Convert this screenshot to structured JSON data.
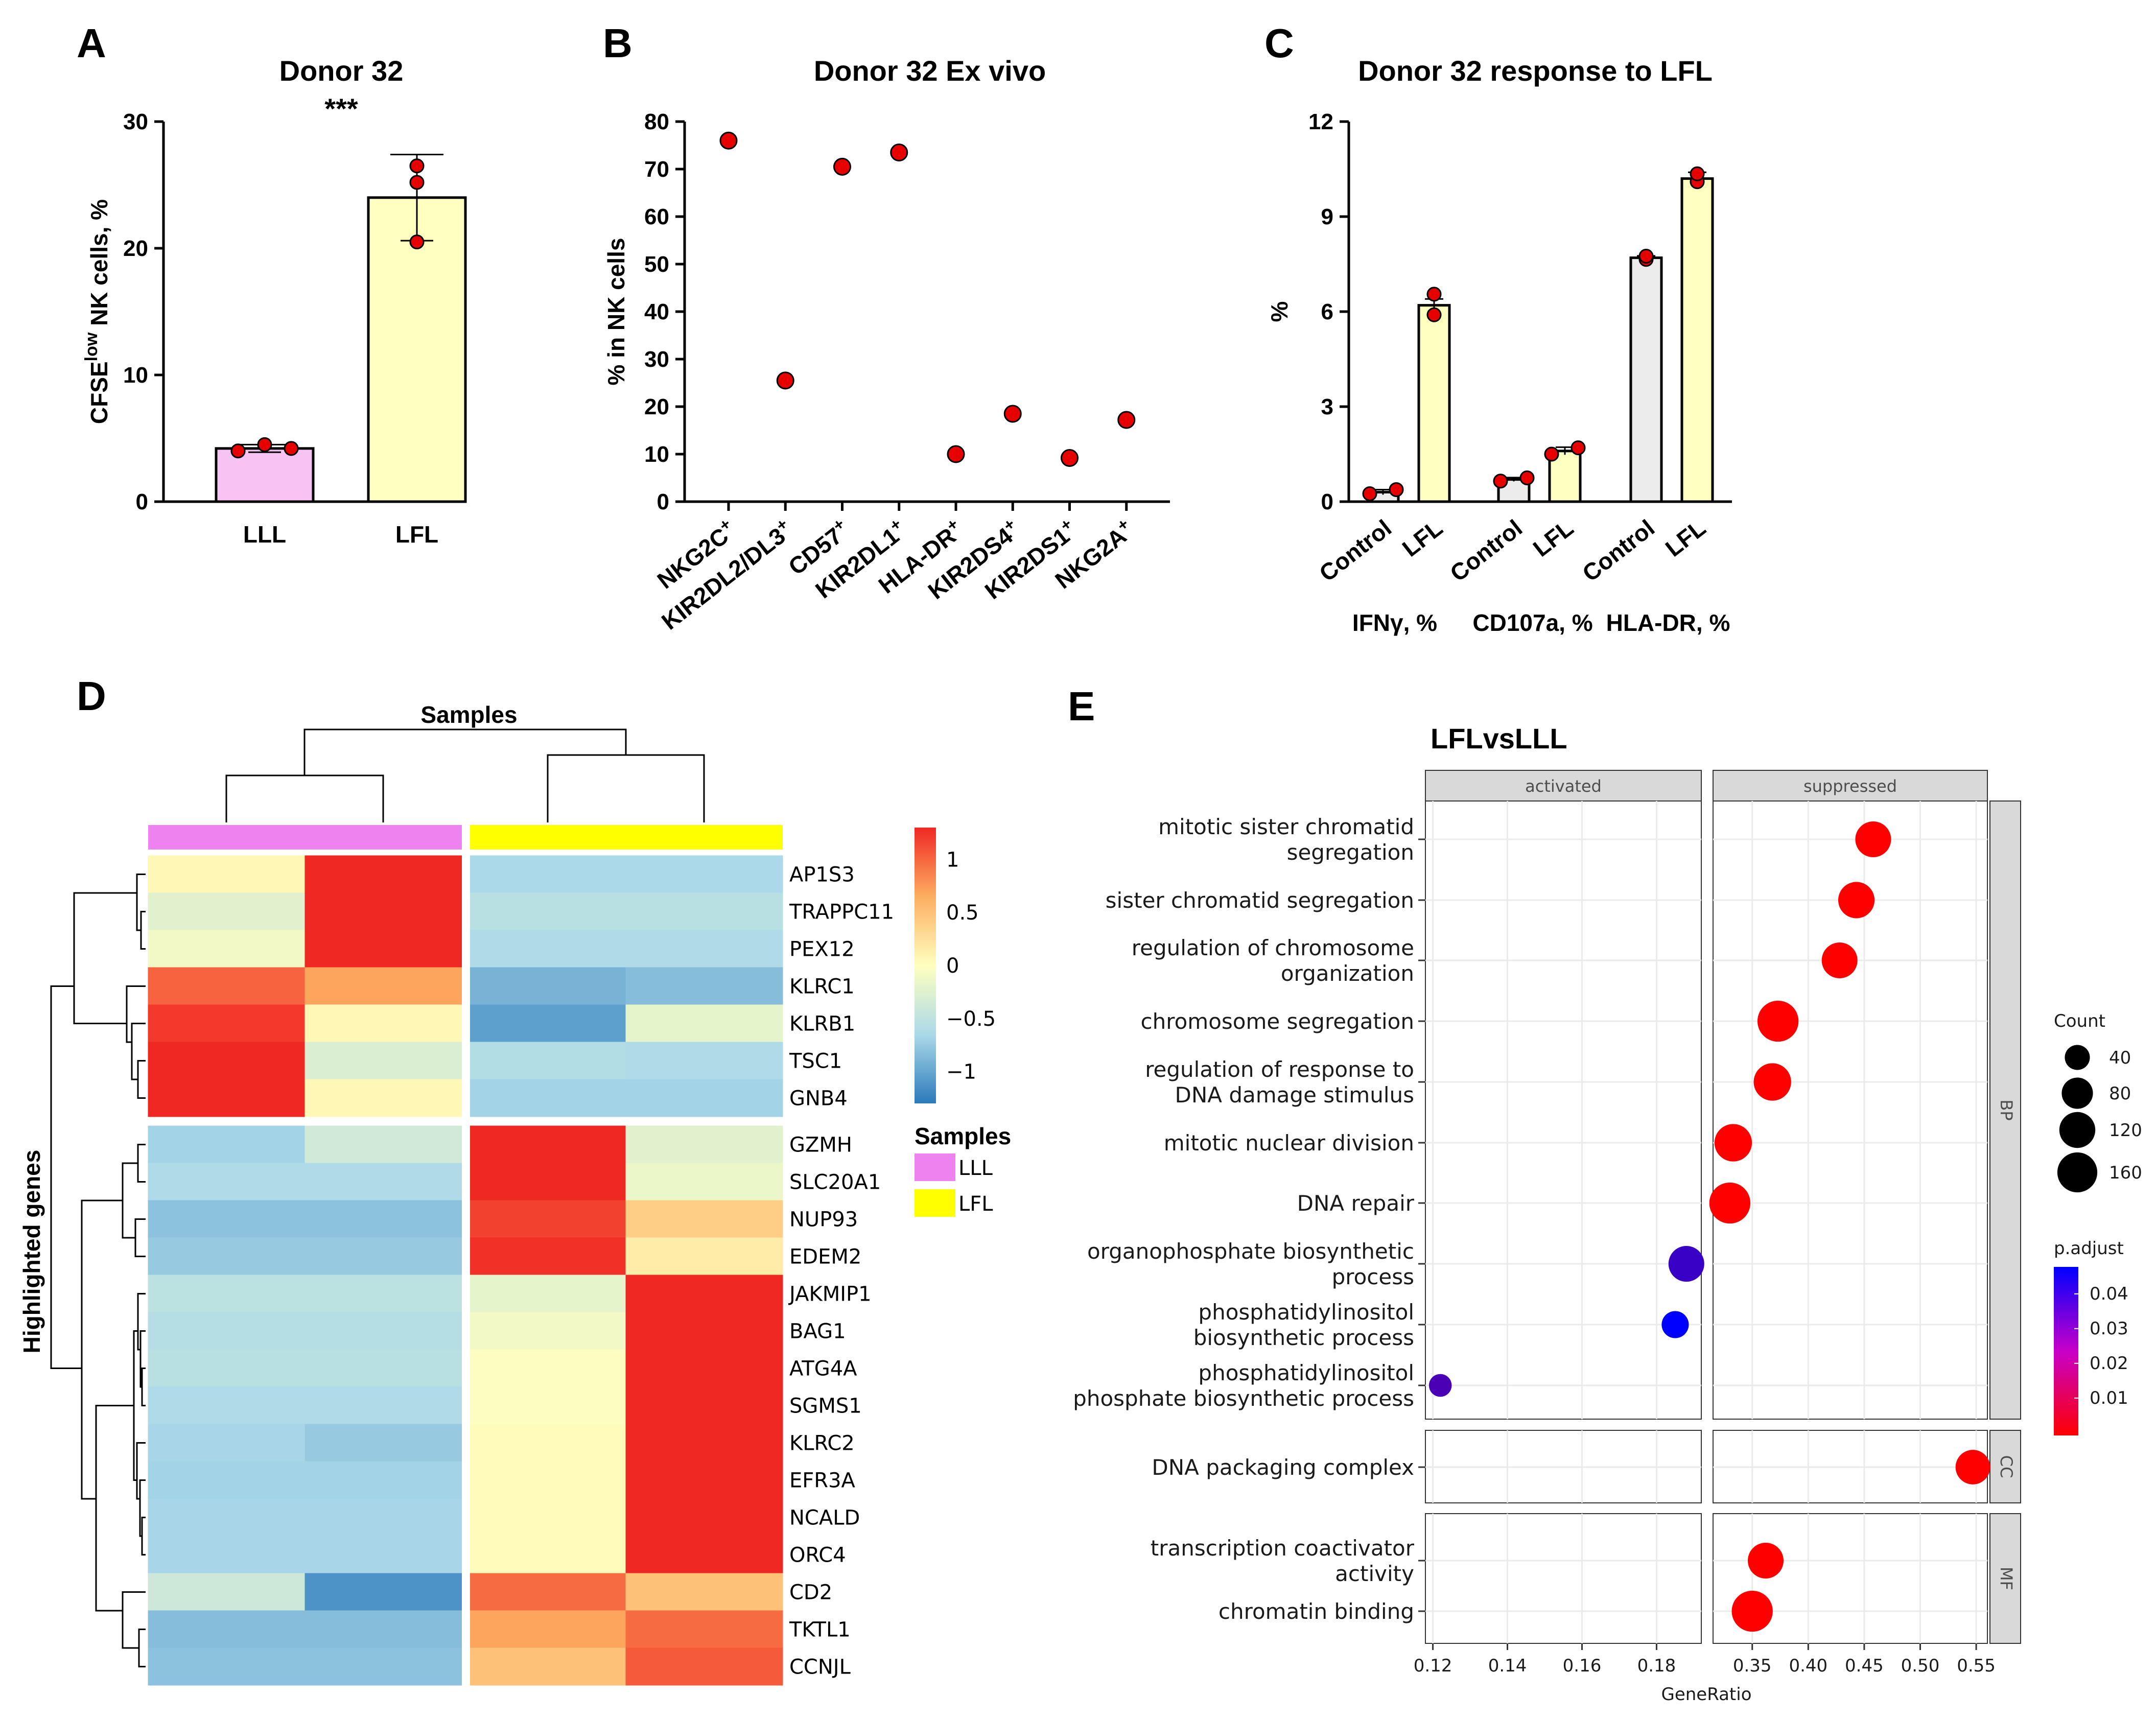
{
  "panel_labels": [
    "A",
    "B",
    "C",
    "D",
    "E"
  ],
  "chart_data": [
    {
      "id": "A",
      "type": "bar",
      "title": "Donor 32",
      "significance": "***",
      "categories": [
        "LLL",
        "LFL"
      ],
      "values": [
        4.2,
        24.0
      ],
      "error": [
        0.3,
        3.4
      ],
      "points": [
        [
          4.0,
          4.5,
          4.2
        ],
        [
          20.5,
          25.2,
          26.5
        ]
      ],
      "bar_colors": [
        "#f7c3f3",
        "#ffffc0"
      ],
      "ylabel_main": "CFSE",
      "ylabel_sup": "low",
      "ylabel_rest": " NK cells, %",
      "ylim": [
        0,
        30
      ],
      "yticks": [
        0,
        10,
        20,
        30
      ]
    },
    {
      "id": "B",
      "type": "scatter",
      "title": "Donor 32 Ex vivo",
      "categories": [
        "NKG2C",
        "KIR2DL2/DL3",
        "CD57",
        "KIR2DL1",
        "HLA-DR",
        "KIR2DS4",
        "KIR2DS1",
        "NKG2A"
      ],
      "category_sup": "+",
      "values": [
        76,
        25.5,
        70.5,
        73.5,
        10,
        18.5,
        9.2,
        17.2
      ],
      "ylabel": "% in NK cells",
      "ylim": [
        0,
        80
      ],
      "yticks": [
        0,
        10,
        20,
        30,
        40,
        50,
        60,
        70,
        80
      ]
    },
    {
      "id": "C",
      "type": "bar",
      "title": "Donor 32 response to LFL",
      "ylabel": "%",
      "ylim": [
        0,
        12
      ],
      "yticks": [
        0,
        3,
        6,
        9,
        12
      ],
      "groups": [
        "IFNγ, %",
        "CD107a, %",
        "HLA-DR, %"
      ],
      "categories": [
        "Control",
        "LFL",
        "Control",
        "LFL",
        "Control",
        "LFL"
      ],
      "values": [
        0.3,
        6.2,
        0.7,
        1.6,
        7.7,
        10.2
      ],
      "error": [
        0.08,
        0.2,
        0.06,
        0.12,
        0.06,
        0.2
      ],
      "points": [
        [
          0.25,
          0.38
        ],
        [
          5.9,
          6.55
        ],
        [
          0.65,
          0.75
        ],
        [
          1.5,
          1.7
        ],
        [
          7.65,
          7.75
        ],
        [
          10.1,
          10.35
        ]
      ],
      "bar_colors": [
        "#ececec",
        "#ffffc0",
        "#ececec",
        "#ffffc0",
        "#ececec",
        "#ffffc0"
      ]
    },
    {
      "id": "D",
      "type": "heatmap",
      "title": "Samples",
      "ylabel": "Highlighted genes",
      "genes": [
        "AP1S3",
        "TRAPPC11",
        "PEX12",
        "KLRC1",
        "KLRB1",
        "TSC1",
        "GNB4",
        "GZMH",
        "SLC20A1",
        "NUP93",
        "EDEM2",
        "JAKMIP1",
        "BAG1",
        "ATG4A",
        "SGMS1",
        "KLRC2",
        "EFR3A",
        "NCALD",
        "ORC4",
        "CD2",
        "TKTL1",
        "CCNJL"
      ],
      "values": [
        [
          0.05,
          1.3,
          -0.5,
          -0.5
        ],
        [
          -0.18,
          1.3,
          -0.42,
          -0.42
        ],
        [
          -0.08,
          1.3,
          -0.48,
          -0.48
        ],
        [
          0.95,
          0.55,
          -0.8,
          -0.72
        ],
        [
          1.2,
          0.05,
          -0.95,
          -0.15
        ],
        [
          1.3,
          -0.22,
          -0.45,
          -0.48
        ],
        [
          1.3,
          0.05,
          -0.55,
          -0.55
        ],
        [
          -0.55,
          -0.28,
          1.3,
          -0.18
        ],
        [
          -0.48,
          -0.48,
          1.3,
          -0.12
        ],
        [
          -0.68,
          -0.68,
          1.15,
          0.3
        ],
        [
          -0.62,
          -0.62,
          1.25,
          0.12
        ],
        [
          -0.4,
          -0.4,
          -0.15,
          1.3
        ],
        [
          -0.44,
          -0.44,
          -0.08,
          1.3
        ],
        [
          -0.42,
          -0.42,
          -0.02,
          1.3
        ],
        [
          -0.48,
          -0.48,
          -0.02,
          1.3
        ],
        [
          -0.52,
          -0.62,
          0.02,
          1.3
        ],
        [
          -0.55,
          -0.55,
          0.02,
          1.3
        ],
        [
          -0.52,
          -0.52,
          0.02,
          1.3
        ],
        [
          -0.52,
          -0.52,
          0.02,
          1.3
        ],
        [
          -0.3,
          -1.05,
          0.9,
          0.38
        ],
        [
          -0.72,
          -0.72,
          0.55,
          0.9
        ],
        [
          -0.68,
          -0.68,
          0.38,
          1.0
        ]
      ],
      "scale_ticks": [
        1,
        0.5,
        0,
        -0.5,
        -1
      ],
      "scale_tick_labels": [
        "1",
        "0.5",
        "0",
        "−0.5",
        "−1"
      ],
      "legend_title": "Samples",
      "sample_groups": [
        "LLL",
        "LFL"
      ],
      "sample_group_colors": [
        "#ee82ee",
        "#ffff00"
      ]
    },
    {
      "id": "E",
      "type": "scatter",
      "title": "LFLvsLLL",
      "facets_x": [
        "activated",
        "suppressed"
      ],
      "facets_y": [
        "BP",
        "CC",
        "MF"
      ],
      "xlabel": "GeneRatio",
      "terms": [
        {
          "label": [
            "mitotic sister chromatid",
            "segregation"
          ],
          "facet": "suppressed",
          "section": "BP",
          "x": 0.458,
          "count": 100,
          "padj": 0.001
        },
        {
          "label": [
            "sister chromatid segregation"
          ],
          "facet": "suppressed",
          "section": "BP",
          "x": 0.443,
          "count": 105,
          "padj": 0.001
        },
        {
          "label": [
            "regulation of chromosome",
            "organization"
          ],
          "facet": "suppressed",
          "section": "BP",
          "x": 0.428,
          "count": 100,
          "padj": 0.001
        },
        {
          "label": [
            "chromosome segregation"
          ],
          "facet": "suppressed",
          "section": "BP",
          "x": 0.373,
          "count": 150,
          "padj": 0.001
        },
        {
          "label": [
            "regulation of response to",
            "DNA damage stimulus"
          ],
          "facet": "suppressed",
          "section": "BP",
          "x": 0.368,
          "count": 115,
          "padj": 0.001
        },
        {
          "label": [
            "mitotic nuclear division"
          ],
          "facet": "suppressed",
          "section": "BP",
          "x": 0.333,
          "count": 115,
          "padj": 0.001
        },
        {
          "label": [
            "DNA repair"
          ],
          "facet": "suppressed",
          "section": "BP",
          "x": 0.33,
          "count": 150,
          "padj": 0.001
        },
        {
          "label": [
            "organophosphate biosynthetic",
            "process"
          ],
          "facet": "activated",
          "section": "BP",
          "x": 0.188,
          "count": 100,
          "padj": 0.036
        },
        {
          "label": [
            "phosphatidylinositol",
            "biosynthetic process"
          ],
          "facet": "activated",
          "section": "BP",
          "x": 0.185,
          "count": 40,
          "padj": 0.046
        },
        {
          "label": [
            "phosphatidylinositol",
            "phosphate biosynthetic process"
          ],
          "facet": "activated",
          "section": "BP",
          "x": 0.122,
          "count": 20,
          "padj": 0.033
        },
        {
          "label": [
            "DNA packaging complex"
          ],
          "facet": "suppressed",
          "section": "CC",
          "x": 0.547,
          "count": 90,
          "padj": 0.001
        },
        {
          "label": [
            "transcription coactivator",
            "activity"
          ],
          "facet": "suppressed",
          "section": "MF",
          "x": 0.362,
          "count": 100,
          "padj": 0.001
        },
        {
          "label": [
            "chromatin binding"
          ],
          "facet": "suppressed",
          "section": "MF",
          "x": 0.35,
          "count": 150,
          "padj": 0.001
        }
      ],
      "activated_ticks": [
        0.12,
        0.14,
        0.16,
        0.18
      ],
      "activated_tick_labels": [
        "0.12",
        "0.14",
        "0.16",
        "0.18"
      ],
      "suppressed_ticks": [
        0.35,
        0.4,
        0.45,
        0.5,
        0.55
      ],
      "suppressed_tick_labels": [
        "0.35",
        "0.40",
        "0.45",
        "0.50",
        "0.55"
      ],
      "count_legend_title": "Count",
      "count_legend": [
        40,
        80,
        120,
        160
      ],
      "padj_legend_title": "p.adjust",
      "padj_ticks": [
        0.04,
        0.03,
        0.02,
        0.01
      ],
      "padj_tick_labels": [
        "0.04",
        "0.03",
        "0.02",
        "0.01"
      ]
    }
  ]
}
